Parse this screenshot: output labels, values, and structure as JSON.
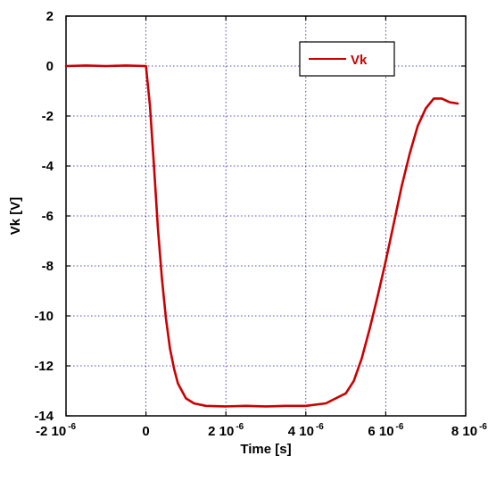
{
  "chart_data": {
    "type": "line",
    "title": "",
    "xlabel": "Time [s]",
    "ylabel": "Vk [V]",
    "xlim": [
      -2e-06,
      8e-06
    ],
    "ylim": [
      -14,
      2
    ],
    "grid": true,
    "legend_position": "top-right",
    "x_ticks": [
      {
        "value": -2e-06,
        "mantissa": "-2",
        "exp": "-6"
      },
      {
        "value": 0,
        "mantissa": "0",
        "exp": ""
      },
      {
        "value": 2e-06,
        "mantissa": "2",
        "exp": "-6"
      },
      {
        "value": 4e-06,
        "mantissa": "4",
        "exp": "-6"
      },
      {
        "value": 6e-06,
        "mantissa": "6",
        "exp": "-6"
      },
      {
        "value": 8e-06,
        "mantissa": "8",
        "exp": "-6"
      }
    ],
    "y_ticks": [
      {
        "value": 2,
        "label": "2"
      },
      {
        "value": 0,
        "label": "0"
      },
      {
        "value": -2,
        "label": "-2"
      },
      {
        "value": -4,
        "label": "-4"
      },
      {
        "value": -6,
        "label": "-6"
      },
      {
        "value": -8,
        "label": "-8"
      },
      {
        "value": -10,
        "label": "-10"
      },
      {
        "value": -12,
        "label": "-12"
      },
      {
        "value": -14,
        "label": "-14"
      }
    ],
    "tick_base": "10",
    "series": [
      {
        "name": "Vk",
        "color": "#cc0000",
        "x": [
          -2e-06,
          -1.5e-06,
          -1e-06,
          -5e-07,
          0,
          1e-07,
          2e-07,
          3e-07,
          4e-07,
          5e-07,
          6e-07,
          7e-07,
          8e-07,
          1e-06,
          1.2e-06,
          1.5e-06,
          2e-06,
          2.5e-06,
          3e-06,
          3.5e-06,
          4e-06,
          4.5e-06,
          5e-06,
          5.2e-06,
          5.4e-06,
          5.6e-06,
          5.8e-06,
          6e-06,
          6.2e-06,
          6.4e-06,
          6.6e-06,
          6.8e-06,
          7e-06,
          7.2e-06,
          7.4e-06,
          7.6e-06,
          7.8e-06
        ],
        "y": [
          0,
          0.02,
          0,
          0.02,
          0,
          -1.6,
          -4,
          -6.5,
          -8.5,
          -10.1,
          -11.3,
          -12.1,
          -12.7,
          -13.3,
          -13.5,
          -13.6,
          -13.62,
          -13.6,
          -13.62,
          -13.6,
          -13.6,
          -13.5,
          -13.1,
          -12.6,
          -11.7,
          -10.5,
          -9.2,
          -7.8,
          -6.3,
          -4.8,
          -3.5,
          -2.4,
          -1.7,
          -1.3,
          -1.3,
          -1.45,
          -1.5
        ]
      }
    ]
  }
}
